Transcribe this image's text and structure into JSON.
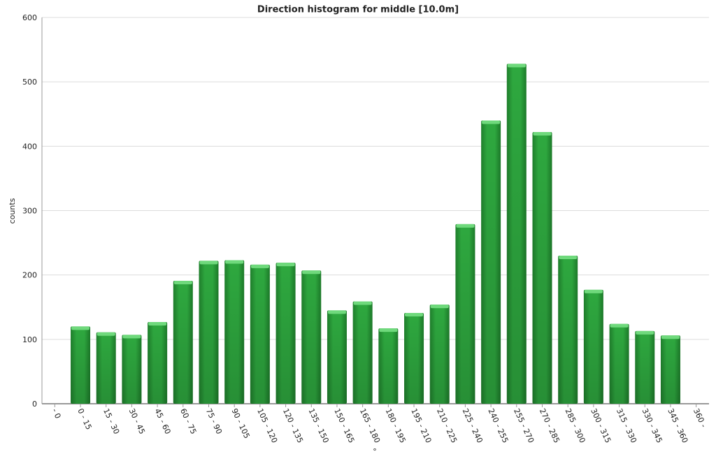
{
  "chart_data": {
    "type": "bar",
    "title": "Direction histogram for middle [10.0m]",
    "x_label": "°",
    "y_label": "counts",
    "categories": [
      "- 0",
      "0 - 15",
      "15 - 30",
      "30 - 45",
      "45 - 60",
      "60 - 75",
      "75 - 90",
      "90 - 105",
      "105 - 120",
      "120 - 135",
      "135 - 150",
      "150 - 165",
      "165 - 180",
      "180 - 195",
      "195 - 210",
      "210 - 225",
      "225 - 240",
      "240 - 255",
      "255 - 270",
      "270 - 285",
      "285 - 300",
      "300 - 315",
      "315 - 330",
      "330 - 345",
      "345 - 360",
      "360 -"
    ],
    "values": [
      null,
      120,
      111,
      107,
      127,
      191,
      222,
      223,
      216,
      219,
      207,
      145,
      159,
      117,
      141,
      154,
      279,
      440,
      528,
      422,
      230,
      177,
      124,
      113,
      106,
      null
    ],
    "color": "#2e9e3e",
    "ylim": [
      0,
      600
    ],
    "yticks": [
      0,
      100,
      200,
      300,
      400,
      500,
      600
    ],
    "grid": true
  }
}
